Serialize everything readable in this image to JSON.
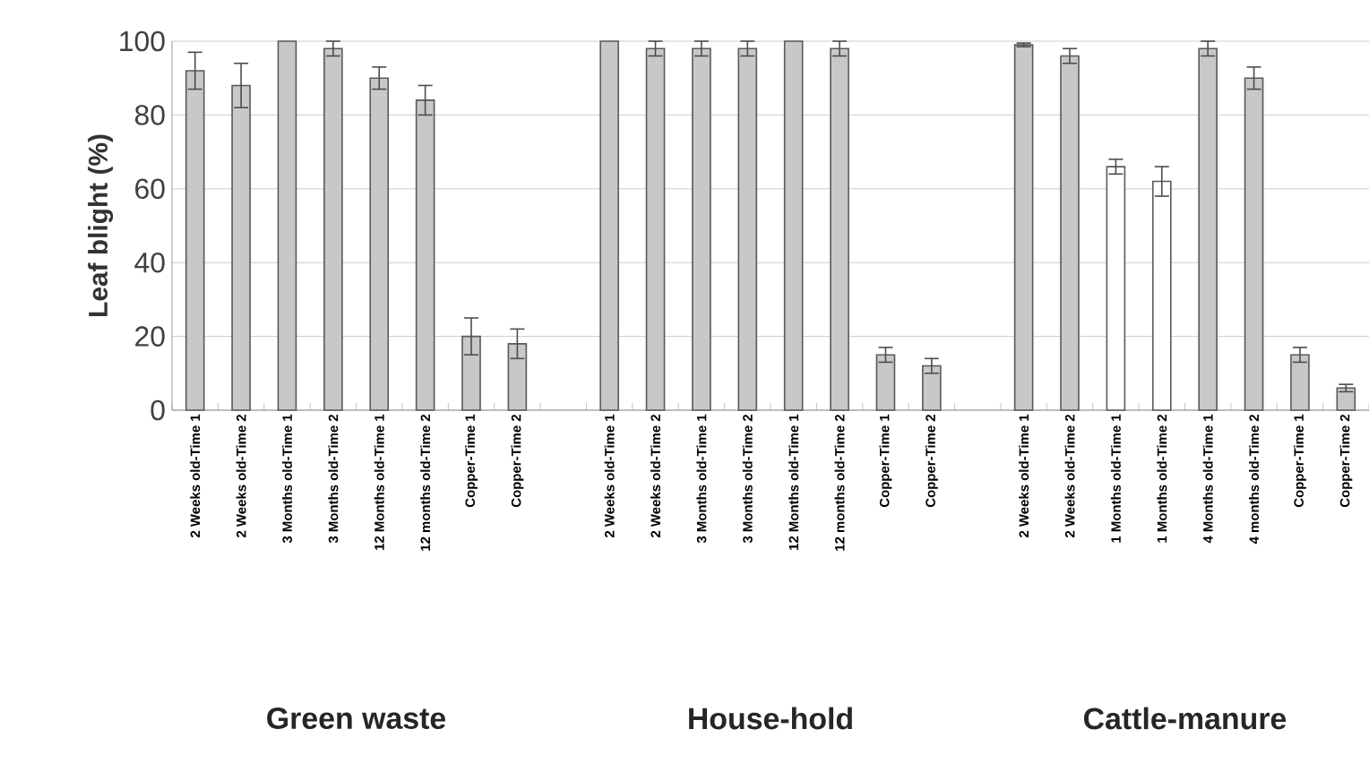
{
  "chart_data": {
    "type": "bar",
    "ylabel": "Leaf blight (%)",
    "categories": [
      "2 Weeks old-Time 1",
      "2 Weeks old-Time 2",
      "3 Months old-Time 1",
      "3 Months old-Time 2",
      "12 Months old-Time 1",
      "12 months old-Time 2",
      "Copper-Time 1",
      "Copper-Time 2",
      null,
      "2 Weeks old-Time 1",
      "2 Weeks old-Time 2",
      "3 Months old-Time 1",
      "3 Months old-Time 2",
      "12 Months old-Time 1",
      "12 months old-Time 2",
      "Copper-Time 1",
      "Copper-Time 2",
      null,
      "2 Weeks old-Time 1",
      "2 Weeks old-Time 2",
      "1 Months old-Time 1",
      "1 Months old-Time 2",
      "4 Months old-Time 1",
      "4 months old-Time 2",
      "Copper-Time 1",
      "Copper-Time 2"
    ],
    "values": [
      92,
      88,
      100,
      98,
      90,
      84,
      20,
      18,
      null,
      100,
      98,
      98,
      98,
      100,
      98,
      15,
      12,
      null,
      99,
      96,
      66,
      62,
      98,
      90,
      15,
      6
    ],
    "errors": [
      5,
      6,
      null,
      2,
      3,
      4,
      5,
      4,
      null,
      null,
      2,
      2,
      2,
      null,
      2,
      2,
      2,
      null,
      0.5,
      2,
      2,
      4,
      2,
      3,
      2,
      1
    ],
    "colors": [
      "#c8c8c8",
      "#c8c8c8",
      "#c8c8c8",
      "#c8c8c8",
      "#c8c8c8",
      "#c8c8c8",
      "#c8c8c8",
      "#c8c8c8",
      null,
      "#c8c8c8",
      "#c8c8c8",
      "#c8c8c8",
      "#c8c8c8",
      "#c8c8c8",
      "#c8c8c8",
      "#c8c8c8",
      "#c8c8c8",
      null,
      "#c8c8c8",
      "#c8c8c8",
      "#ffffff",
      "#ffffff",
      "#c8c8c8",
      "#c8c8c8",
      "#c8c8c8",
      "#c8c8c8"
    ],
    "ylim": [
      0,
      100
    ],
    "yticks": [
      0,
      20,
      40,
      60,
      80,
      100
    ],
    "grid": "y",
    "annotations": [
      "Green waste",
      "House-hold",
      "Cattle-manure"
    ]
  }
}
